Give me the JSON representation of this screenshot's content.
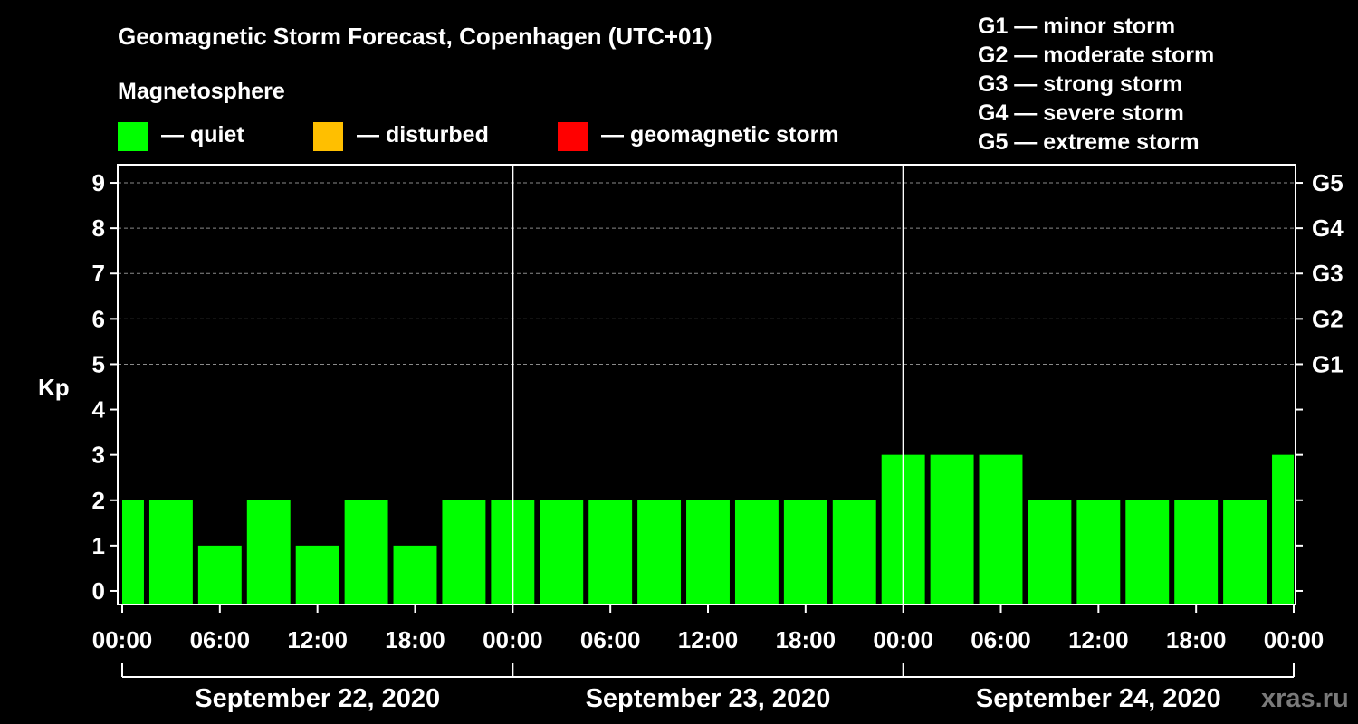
{
  "title": "Geomagnetic Storm Forecast, Copenhagen (UTC+01)",
  "legend": {
    "heading": "Magnetosphere",
    "items": [
      {
        "color": "#00ff00",
        "label": "— quiet"
      },
      {
        "color": "#ffbf00",
        "label": "— disturbed"
      },
      {
        "color": "#ff0000",
        "label": "— geomagnetic storm"
      }
    ]
  },
  "storm_scale": [
    "G1 — minor storm",
    "G2 — moderate storm",
    "G3 — strong storm",
    "G4 — severe storm",
    "G5 — extreme storm"
  ],
  "watermark": "xras.ru",
  "chart_data": {
    "type": "bar",
    "ylabel": "Kp",
    "ylim": [
      -0.3,
      9.4
    ],
    "y_ticks": [
      "0",
      "1",
      "2",
      "3",
      "4",
      "5",
      "6",
      "7",
      "8",
      "9"
    ],
    "right_ticks": [
      {
        "value": 5,
        "label": "G1"
      },
      {
        "value": 6,
        "label": "G2"
      },
      {
        "value": 7,
        "label": "G3"
      },
      {
        "value": 8,
        "label": "G4"
      },
      {
        "value": 9,
        "label": "G5"
      }
    ],
    "grid": "dashed horizontal at Kp 5-9",
    "x_tick_labels": [
      "00:00",
      "06:00",
      "12:00",
      "18:00",
      "00:00",
      "06:00",
      "12:00",
      "18:00",
      "00:00",
      "06:00",
      "12:00",
      "18:00",
      "00:00"
    ],
    "days": [
      "September 22, 2020",
      "September 23, 2020",
      "September 24, 2020"
    ],
    "interval_hours": 3,
    "series": [
      {
        "color": "#00ff00",
        "values": [
          2,
          2,
          1,
          2,
          1,
          2,
          1,
          2,
          2,
          2,
          2,
          2,
          2,
          2,
          2,
          2,
          3,
          3,
          3,
          2,
          2,
          2,
          2,
          2,
          3
        ]
      }
    ]
  }
}
